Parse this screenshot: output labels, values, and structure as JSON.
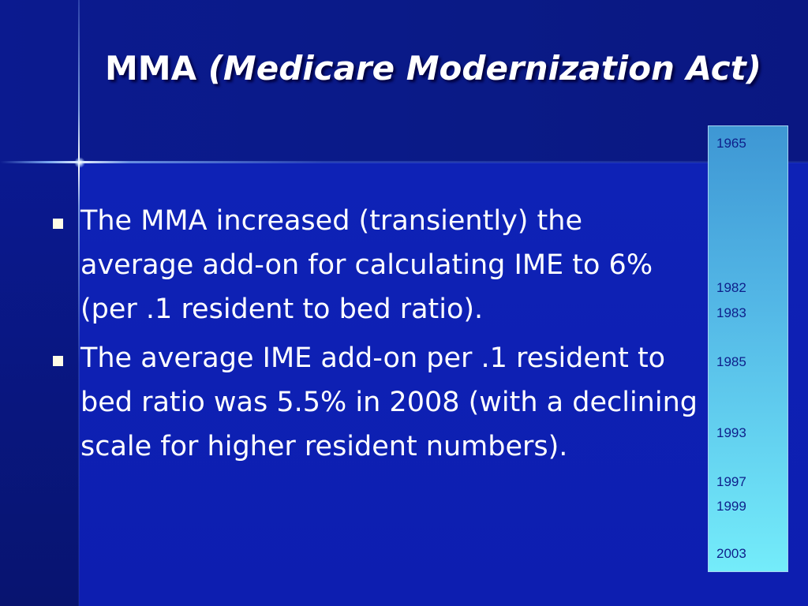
{
  "slide": {
    "title_main": "MMA",
    "title_sub": "(Medicare Modernization Act)",
    "bullets": [
      {
        "text": "The MMA increased (transiently) the average add-on for calculating IME to 6% (per .1 resident to bed ratio)."
      },
      {
        "text": "The average IME add-on per .1 resident to bed ratio was 5.5% in 2008 (with a declining scale for higher resident numbers)."
      }
    ],
    "timeline_years": [
      "1965",
      "1982",
      "1983",
      "1985",
      "1993",
      "1997",
      "1999",
      "2003"
    ]
  },
  "colors": {
    "background": "#0c1a9e",
    "title_text": "#ffffff",
    "timeline_top": "#3e97d4",
    "timeline_bottom": "#74ecfa",
    "timeline_text": "#0e1f8a"
  }
}
